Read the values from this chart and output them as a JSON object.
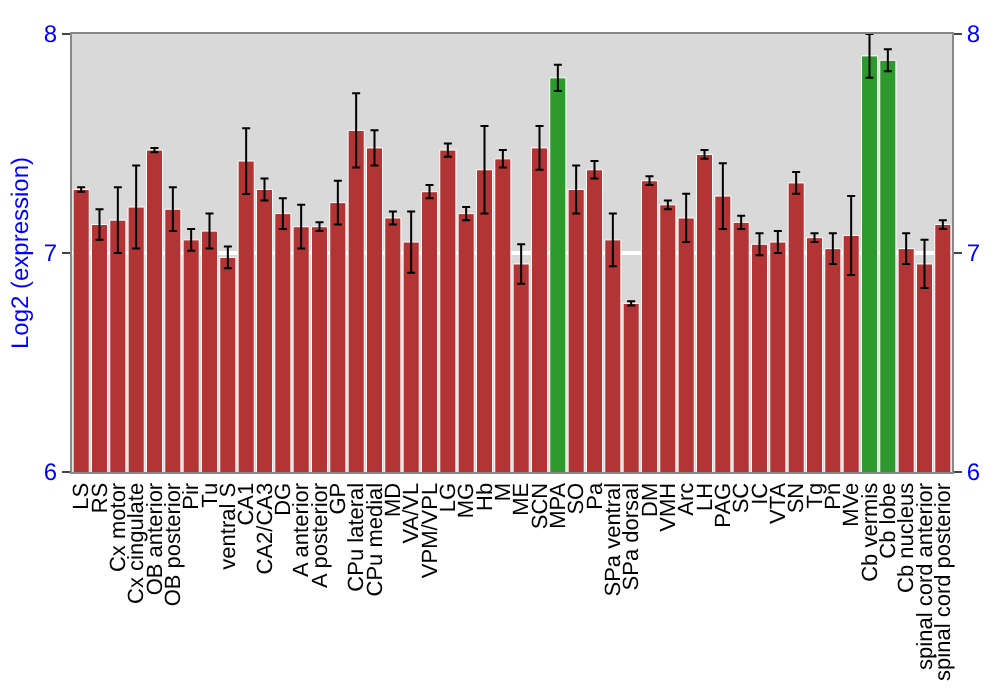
{
  "chart_data": {
    "type": "bar",
    "ylabel": "Log2 (expression)",
    "categories": [
      "LS",
      "RS",
      "Cx motor",
      "Cx cingulate",
      "OB anterior",
      "OB posterior",
      "Pir",
      "Tu",
      "ventral S",
      "CA1",
      "CA2/CA3",
      "DG",
      "A anterior",
      "A posterior",
      "GP",
      "CPu lateral",
      "CPu medial",
      "MD",
      "VA/VL",
      "VPM/VPL",
      "LG",
      "MG",
      "Hb",
      "M",
      "ME",
      "SCN",
      "MPA",
      "SO",
      "Pa",
      "SPa ventral",
      "SPa dorsal",
      "DM",
      "VMH",
      "Arc",
      "LH",
      "PAG",
      "SC",
      "IC",
      "VTA",
      "SN",
      "Tg",
      "Pn",
      "MVe",
      "Cb vermis",
      "Cb lobe",
      "Cb nucleus",
      "spinal cord anterior",
      "spinal cord posterior"
    ],
    "values": [
      7.29,
      7.13,
      7.15,
      7.21,
      7.47,
      7.2,
      7.06,
      7.1,
      6.98,
      7.42,
      7.29,
      7.18,
      7.12,
      7.12,
      7.23,
      7.56,
      7.48,
      7.16,
      7.05,
      7.28,
      7.47,
      7.18,
      7.38,
      7.43,
      6.95,
      7.48,
      7.8,
      7.29,
      7.38,
      7.06,
      6.77,
      7.33,
      7.22,
      7.16,
      7.45,
      7.26,
      7.14,
      7.04,
      7.05,
      7.32,
      7.07,
      7.02,
      7.08,
      7.9,
      7.88,
      7.02,
      6.95,
      7.13
    ],
    "errors": [
      0.01,
      0.07,
      0.15,
      0.19,
      0.01,
      0.1,
      0.05,
      0.08,
      0.05,
      0.15,
      0.05,
      0.07,
      0.1,
      0.02,
      0.1,
      0.17,
      0.08,
      0.03,
      0.14,
      0.03,
      0.03,
      0.03,
      0.2,
      0.04,
      0.09,
      0.1,
      0.06,
      0.11,
      0.04,
      0.12,
      0.01,
      0.02,
      0.02,
      0.11,
      0.02,
      0.15,
      0.03,
      0.05,
      0.05,
      0.05,
      0.02,
      0.07,
      0.18,
      0.1,
      0.05,
      0.07,
      0.11,
      0.02
    ],
    "colors": [
      "#b33434",
      "#b33434",
      "#b33434",
      "#b33434",
      "#b33434",
      "#b33434",
      "#b33434",
      "#b33434",
      "#b33434",
      "#b33434",
      "#b33434",
      "#b33434",
      "#b33434",
      "#b33434",
      "#b33434",
      "#b33434",
      "#b33434",
      "#b33434",
      "#b33434",
      "#b33434",
      "#b33434",
      "#b33434",
      "#b33434",
      "#b33434",
      "#b33434",
      "#b33434",
      "#2e9a2e",
      "#b33434",
      "#b33434",
      "#b33434",
      "#b33434",
      "#b33434",
      "#b33434",
      "#b33434",
      "#b33434",
      "#b33434",
      "#b33434",
      "#b33434",
      "#b33434",
      "#b33434",
      "#b33434",
      "#b33434",
      "#b33434",
      "#2e9a2e",
      "#2e9a2e",
      "#b33434",
      "#b33434",
      "#b33434"
    ],
    "ylim": [
      6,
      8
    ],
    "yticks": [
      6,
      7,
      8
    ],
    "y2lim": [
      6,
      8
    ],
    "y2ticks": [
      6,
      7,
      8
    ],
    "grid": "y"
  }
}
